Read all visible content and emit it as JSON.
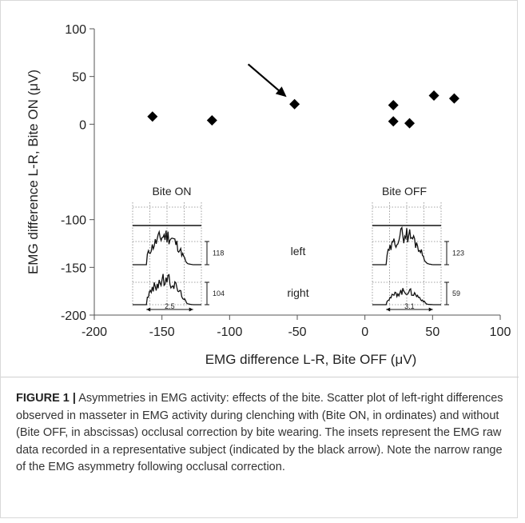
{
  "chart_data": {
    "type": "scatter",
    "xlabel": "EMG difference L-R, Bite OFF (μV)",
    "ylabel": "EMG difference L-R, Bite ON (μV)",
    "xlim": [
      -200,
      100
    ],
    "ylim": [
      -200,
      100
    ],
    "x_ticks": [
      -200,
      -150,
      -100,
      -50,
      0,
      50,
      100
    ],
    "y_ticks": [
      100,
      50,
      0,
      -100,
      -150,
      -200
    ],
    "grid": false,
    "marker": "diamond",
    "marker_color": "#000000",
    "points": [
      {
        "x": -157,
        "y": 8
      },
      {
        "x": -113,
        "y": 4
      },
      {
        "x": -52,
        "y": 21
      },
      {
        "x": 21,
        "y": 20
      },
      {
        "x": 21,
        "y": 3
      },
      {
        "x": 33,
        "y": 1
      },
      {
        "x": 51,
        "y": 30
      },
      {
        "x": 66,
        "y": 27
      }
    ],
    "arrow_annotation": {
      "points_to": {
        "x": -52,
        "y": 21
      },
      "color": "#000000"
    },
    "insets": {
      "row_labels": {
        "top": "left",
        "bottom": "right"
      },
      "bite_on": {
        "title": "Bite ON",
        "top_scale": "118",
        "bottom_scale": "104",
        "time_scale": "2.5"
      },
      "bite_off": {
        "title": "Bite OFF",
        "top_scale": "123",
        "bottom_scale": "59",
        "time_scale": "3.1"
      }
    }
  },
  "caption": {
    "label": "FIGURE 1 |",
    "text": " Asymmetries in EMG activity: effects of the bite. Scatter plot of left-right differences observed in masseter in EMG activity during clenching with (Bite ON, in ordinates) and without (Bite OFF, in abscissas) occlusal correction by bite wearing. The insets represent the EMG raw data recorded in a representative subject (indicated by the black arrow). Note the narrow range of the EMG asymmetry following occlusal correction."
  }
}
